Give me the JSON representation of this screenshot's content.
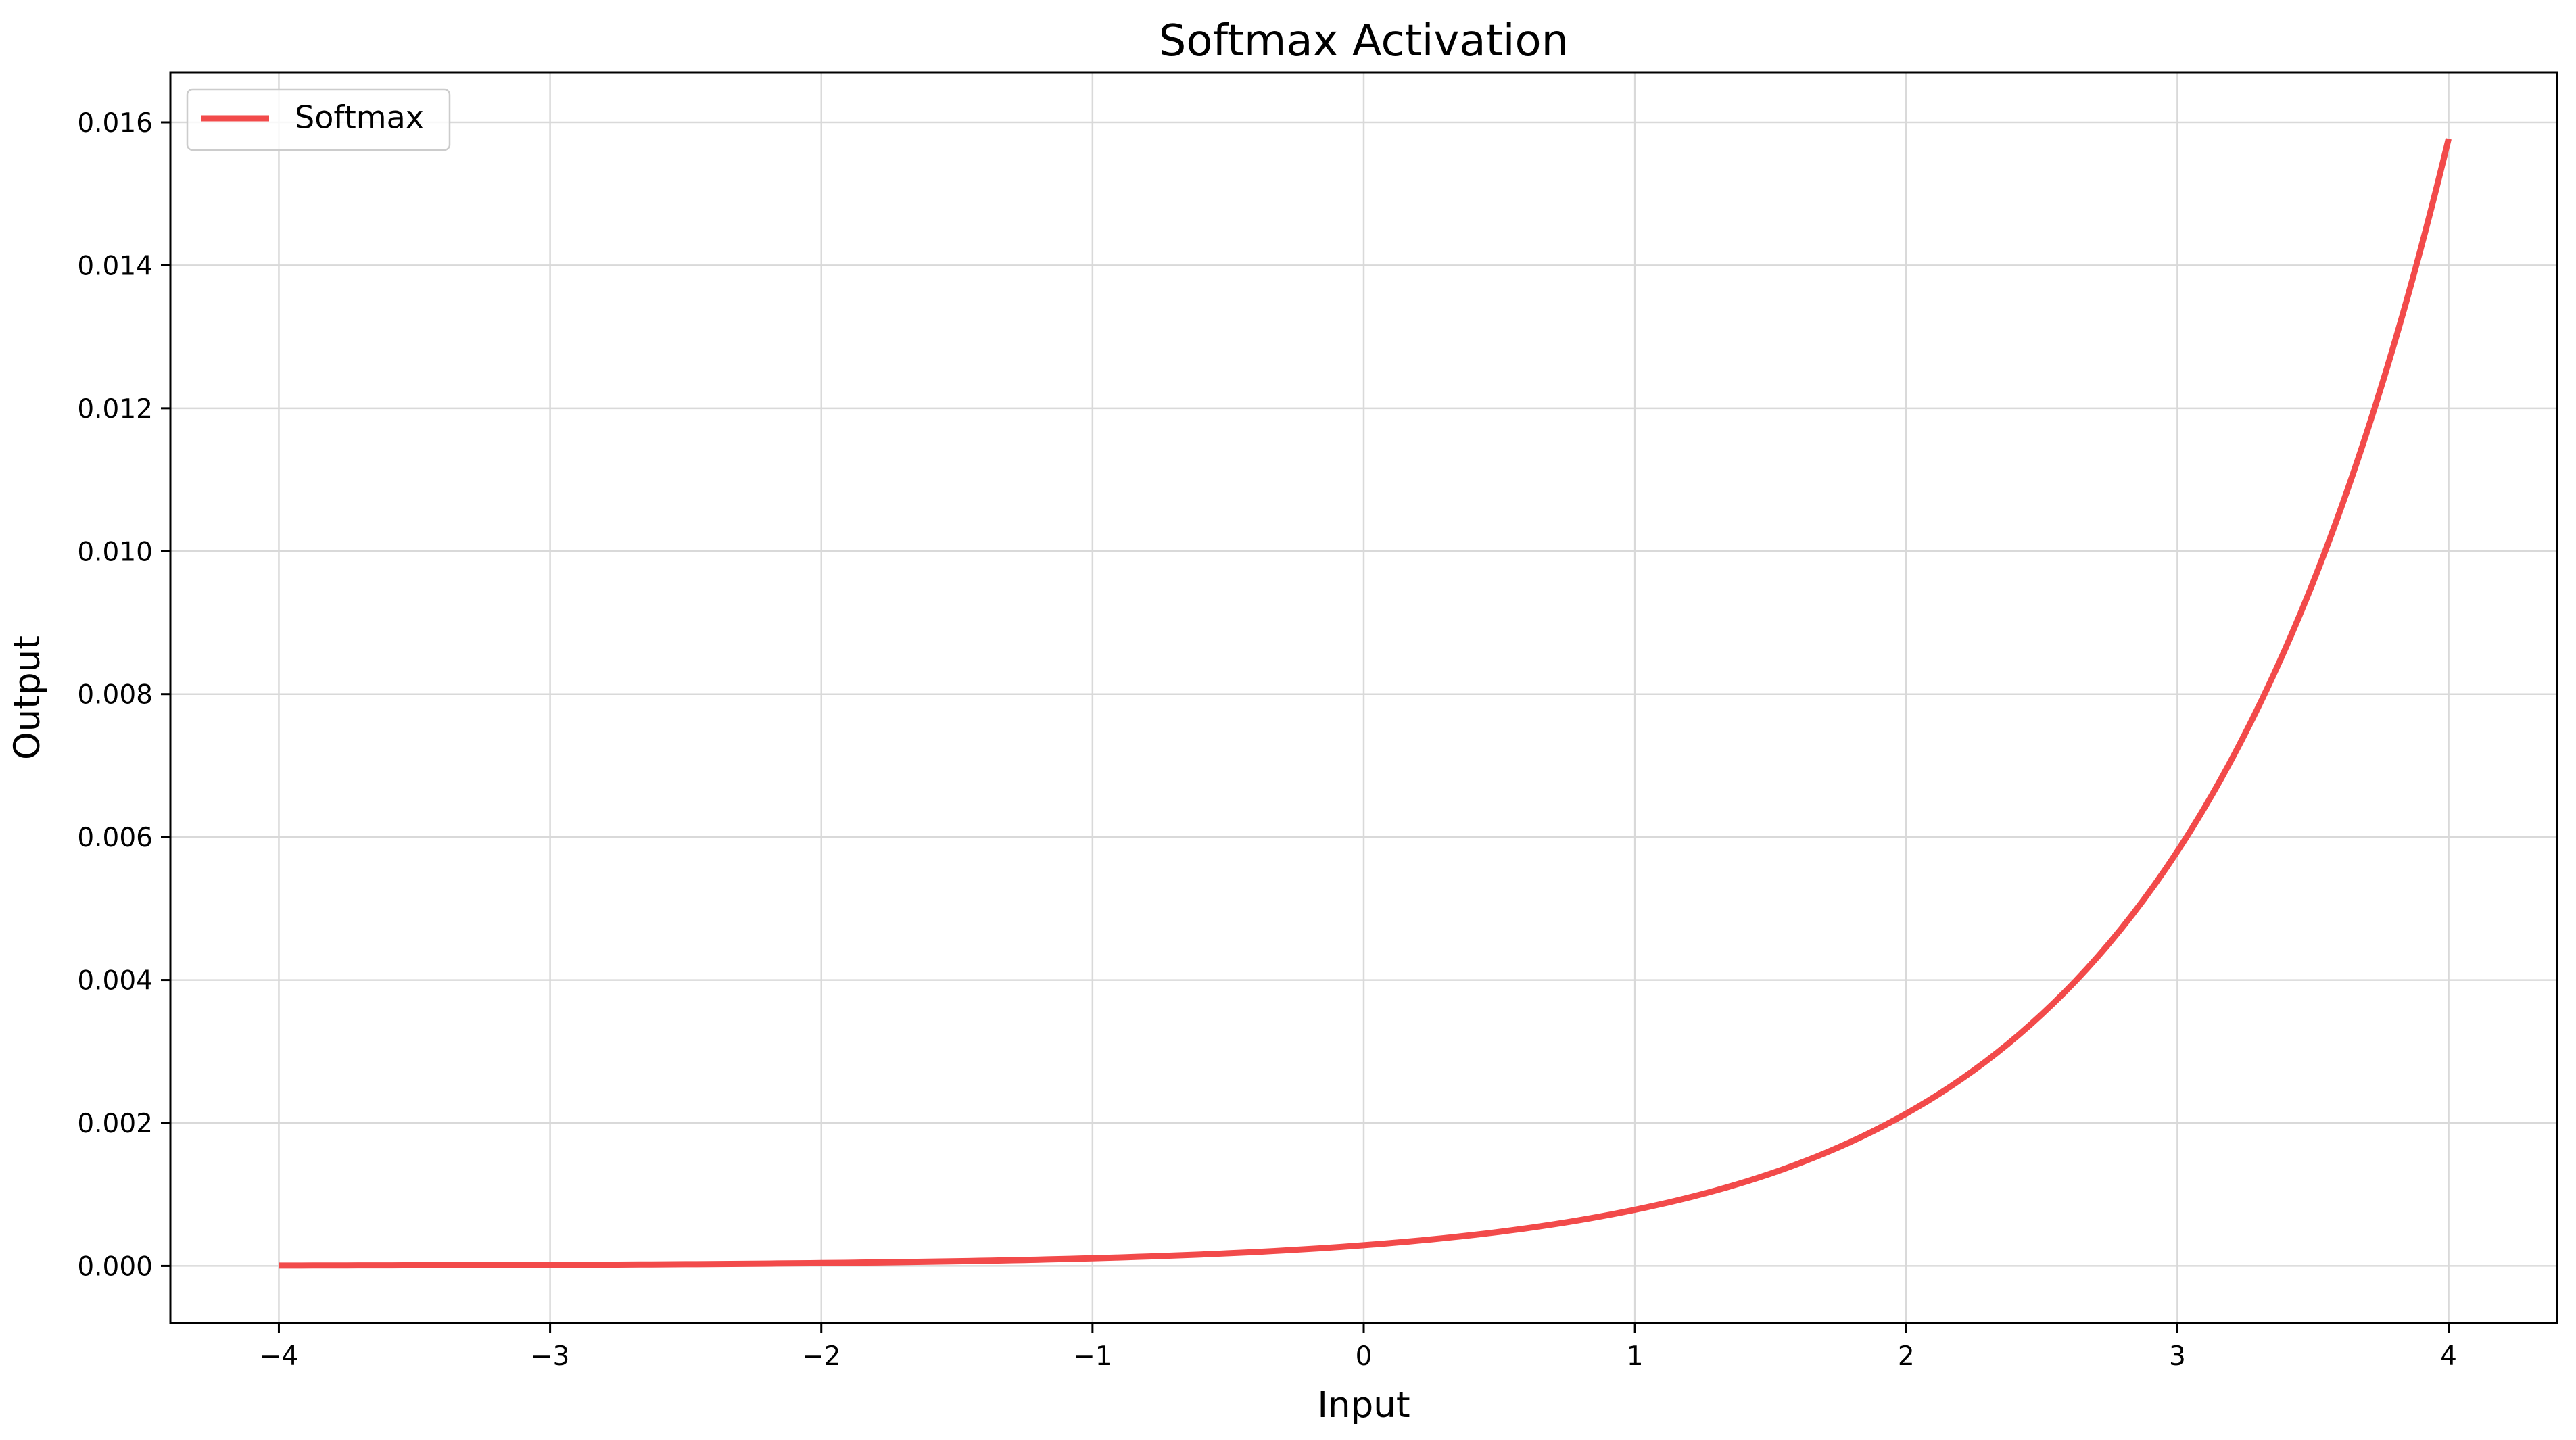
{
  "chart_data": {
    "type": "line",
    "title": "Softmax Activation",
    "xlabel": "Input",
    "ylabel": "Output",
    "xlim": [
      -4.4,
      4.4
    ],
    "ylim": [
      -0.0008,
      0.0167
    ],
    "x_ticks": [
      -4,
      -3,
      -2,
      -1,
      0,
      1,
      2,
      3,
      4
    ],
    "x_tick_labels": [
      "−4",
      "−3",
      "−2",
      "−1",
      "0",
      "1",
      "2",
      "3",
      "4"
    ],
    "y_ticks": [
      0.0,
      0.002,
      0.004,
      0.006,
      0.008,
      0.01,
      0.012,
      0.014,
      0.016
    ],
    "y_tick_labels": [
      "0.000",
      "0.002",
      "0.004",
      "0.006",
      "0.008",
      "0.010",
      "0.012",
      "0.014",
      "0.016"
    ],
    "grid": true,
    "legend_position": "top-left",
    "series": [
      {
        "name": "Softmax",
        "color": "#f24a4a",
        "x": [
          -4.0,
          -3.5,
          -3.0,
          -2.5,
          -2.0,
          -1.5,
          -1.0,
          -0.5,
          0.0,
          0.5,
          1.0,
          1.5,
          2.0,
          2.5,
          3.0,
          3.25,
          3.5,
          3.75,
          4.0
        ],
        "y": [
          5.3e-06,
          8.7e-06,
          1.44e-05,
          2.37e-05,
          3.91e-05,
          6.45e-05,
          0.000106,
          0.000175,
          0.000289,
          0.000476,
          0.000785,
          0.00129,
          0.00213,
          0.00352,
          0.0058,
          0.00745,
          0.00956,
          0.01228,
          0.01577
        ]
      }
    ]
  }
}
